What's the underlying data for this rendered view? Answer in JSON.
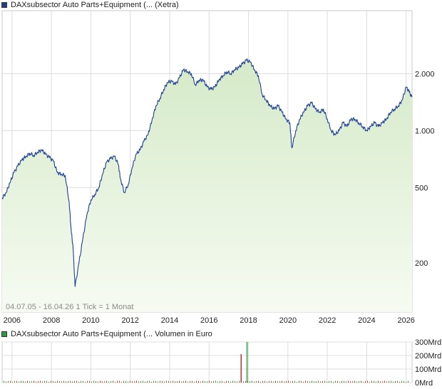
{
  "main_legend": {
    "label": "DAXsubsector Auto Parts+Equipment (... (Xetra)",
    "color": "#1f3f8f"
  },
  "volume_legend": {
    "label": "DAXsubsector Auto Parts+Equipment (... Volumen in Euro",
    "color": "#2e9a3b"
  },
  "info": {
    "range": "04.07.05 - 16.04.26",
    "tick": "1 Tick = 1 Monat"
  },
  "colors": {
    "line": "#1c3f94",
    "fill_top": "#d5eac8",
    "fill_bottom": "#f6fbf2",
    "grid": "#dcdcdc",
    "vol_green": "#2e9a3b",
    "vol_red": "#d0302a"
  },
  "chart_data": [
    {
      "type": "area",
      "yscale": "log",
      "ylim": [
        110,
        4300
      ],
      "xlim": [
        2005.5,
        2026.3
      ],
      "y_ticks": [
        {
          "value": 200,
          "label": "200"
        },
        {
          "value": 500,
          "label": "500"
        },
        {
          "value": 1000,
          "label": "1.000"
        },
        {
          "value": 2000,
          "label": "2.000"
        }
      ],
      "x_ticks": [
        "2006",
        "2008",
        "2010",
        "2012",
        "2014",
        "2016",
        "2018",
        "2020",
        "2022",
        "2024",
        "2026"
      ],
      "series": [
        {
          "x": [
            2005.5,
            2005.7,
            2005.9,
            2006.1,
            2006.3,
            2006.5,
            2006.7,
            2006.9,
            2007.1,
            2007.3,
            2007.5,
            2007.7,
            2007.9,
            2008.1,
            2008.3,
            2008.5,
            2008.7,
            2008.9,
            2009.0,
            2009.1,
            2009.2,
            2009.4,
            2009.6,
            2009.8,
            2010.0,
            2010.2,
            2010.4,
            2010.6,
            2010.8,
            2011.0,
            2011.2,
            2011.4,
            2011.5,
            2011.7,
            2011.9,
            2012.1,
            2012.3,
            2012.5,
            2012.7,
            2012.9,
            2013.1,
            2013.3,
            2013.5,
            2013.7,
            2013.9,
            2014.1,
            2014.3,
            2014.5,
            2014.7,
            2014.9,
            2015.1,
            2015.3,
            2015.5,
            2015.7,
            2015.9,
            2016.1,
            2016.3,
            2016.5,
            2016.7,
            2016.9,
            2017.1,
            2017.3,
            2017.5,
            2017.7,
            2017.9,
            2018.1,
            2018.3,
            2018.5,
            2018.7,
            2018.9,
            2019.1,
            2019.3,
            2019.5,
            2019.7,
            2019.9,
            2020.1,
            2020.2,
            2020.4,
            2020.6,
            2020.8,
            2021.0,
            2021.2,
            2021.4,
            2021.6,
            2021.8,
            2022.0,
            2022.2,
            2022.4,
            2022.6,
            2022.8,
            2023.0,
            2023.2,
            2023.4,
            2023.6,
            2023.8,
            2024.0,
            2024.2,
            2024.4,
            2024.6,
            2024.8,
            2025.0,
            2025.2,
            2025.4,
            2025.6,
            2025.8,
            2026.0,
            2026.15,
            2026.3
          ],
          "y": [
            440,
            470,
            530,
            600,
            650,
            700,
            730,
            760,
            740,
            770,
            790,
            750,
            720,
            690,
            600,
            590,
            580,
            420,
            300,
            240,
            150,
            200,
            270,
            360,
            430,
            460,
            500,
            590,
            680,
            710,
            730,
            660,
            560,
            470,
            520,
            640,
            750,
            790,
            880,
            950,
            1130,
            1350,
            1480,
            1650,
            1800,
            1820,
            1750,
            1900,
            2100,
            2050,
            2000,
            1750,
            1850,
            1850,
            1700,
            1650,
            1700,
            1850,
            1950,
            2050,
            2000,
            2100,
            2150,
            2250,
            2350,
            2300,
            2100,
            1950,
            1550,
            1450,
            1350,
            1300,
            1350,
            1250,
            1150,
            1100,
            810,
            1000,
            1150,
            1250,
            1350,
            1400,
            1300,
            1250,
            1300,
            1150,
            1000,
            950,
            1000,
            1100,
            1050,
            1150,
            1150,
            1100,
            1050,
            1000,
            1050,
            1100,
            1050,
            1100,
            1150,
            1250,
            1300,
            1350,
            1450,
            1700,
            1600,
            1500
          ]
        }
      ]
    },
    {
      "type": "bar",
      "ylim": [
        0,
        300
      ],
      "y_unit": "Mrd",
      "y_ticks": [
        {
          "value": 0,
          "label": "0Mrd"
        },
        {
          "value": 100,
          "label": "100Mrd"
        },
        {
          "value": 200,
          "label": "200Mrd"
        },
        {
          "value": 300,
          "label": "300Mrd"
        }
      ],
      "series": [
        {
          "name": "Volumen in Euro",
          "spikes": [
            {
              "x": 2017.6,
              "value": 210,
              "color": "red"
            },
            {
              "x": 2017.9,
              "value": 300,
              "color": "green"
            }
          ],
          "baseline_value": 3
        }
      ]
    }
  ]
}
